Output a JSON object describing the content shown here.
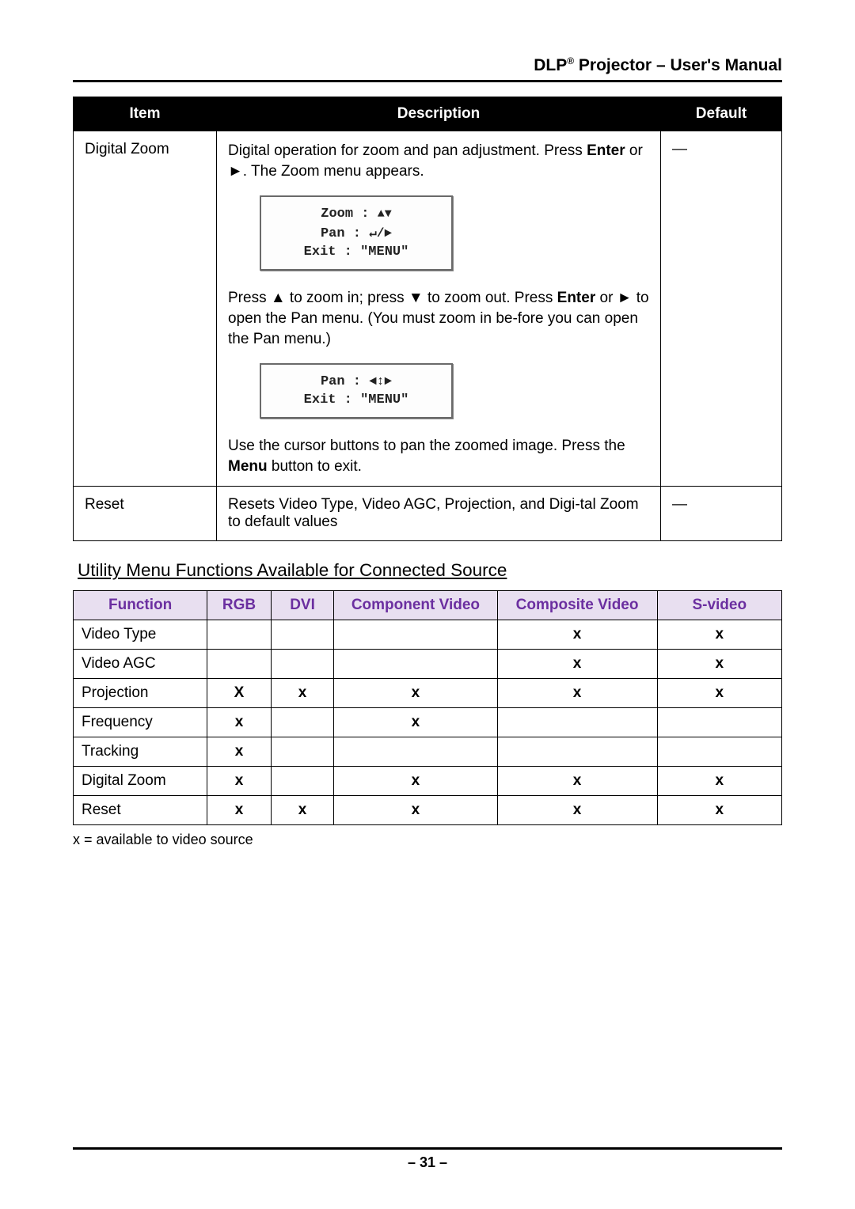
{
  "header": {
    "title_prefix": "DLP",
    "superscript": "®",
    "title_suffix": " Projector – User's Manual"
  },
  "table1": {
    "headers": {
      "item": "Item",
      "desc": "Description",
      "def": "Default"
    },
    "rows": [
      {
        "item": "Digital Zoom",
        "default": "—",
        "para1_a": "Digital operation for zoom and pan adjustment. Press ",
        "para1_bold": "Enter",
        "para1_b": " or ►. The Zoom menu appears.",
        "menu1": {
          "l1a": "Zoom : ",
          "l1s": "▲▼",
          "l2a": "Pan : ",
          "l2s": "↵/►",
          "l3a": "Exit : ",
          "l3s": "\"MENU\""
        },
        "para2_a": "Press ▲ to zoom in; press ▼ to zoom out. Press ",
        "para2_bold": "Enter",
        "para2_b": " or ► to open the Pan menu. (You must zoom in be-fore you can open the Pan menu.)",
        "menu2": {
          "l1a": "Pan : ",
          "l1s": "◄↕►",
          "l2a": "Exit : ",
          "l2s": "\"MENU\""
        },
        "para3_a": "Use the cursor buttons to pan the zoomed image. Press the ",
        "para3_bold": "Menu",
        "para3_b": " button to exit."
      },
      {
        "item": "Reset",
        "default": "—",
        "desc": "Resets Video Type, Video AGC, Projection, and Digi-tal Zoom to default values"
      }
    ]
  },
  "section_title": "Utility Menu Functions Available for Connected Source",
  "table2": {
    "cols": [
      "Function",
      "RGB",
      "DVI",
      "Component Video",
      "Composite Video",
      "S-video"
    ],
    "rows": [
      {
        "f": "Video Type",
        "v": [
          "",
          "",
          "",
          "x",
          "x"
        ]
      },
      {
        "f": "Video AGC",
        "v": [
          "",
          "",
          "",
          "x",
          "x"
        ]
      },
      {
        "f": "Projection",
        "v": [
          "X",
          "x",
          "x",
          "x",
          "x"
        ]
      },
      {
        "f": "Frequency",
        "v": [
          "x",
          "",
          "x",
          "",
          ""
        ]
      },
      {
        "f": "Tracking",
        "v": [
          "x",
          "",
          "",
          "",
          ""
        ]
      },
      {
        "f": "Digital Zoom",
        "v": [
          "x",
          "",
          "x",
          "x",
          "x"
        ]
      },
      {
        "f": "Reset",
        "v": [
          "x",
          "x",
          "x",
          "x",
          "x"
        ]
      }
    ]
  },
  "footnote": "x = available to video source",
  "page_number": "– 31 –",
  "colors": {
    "t2_header_bg": "#e8dff0",
    "t2_header_color": "#6b2fa0"
  }
}
